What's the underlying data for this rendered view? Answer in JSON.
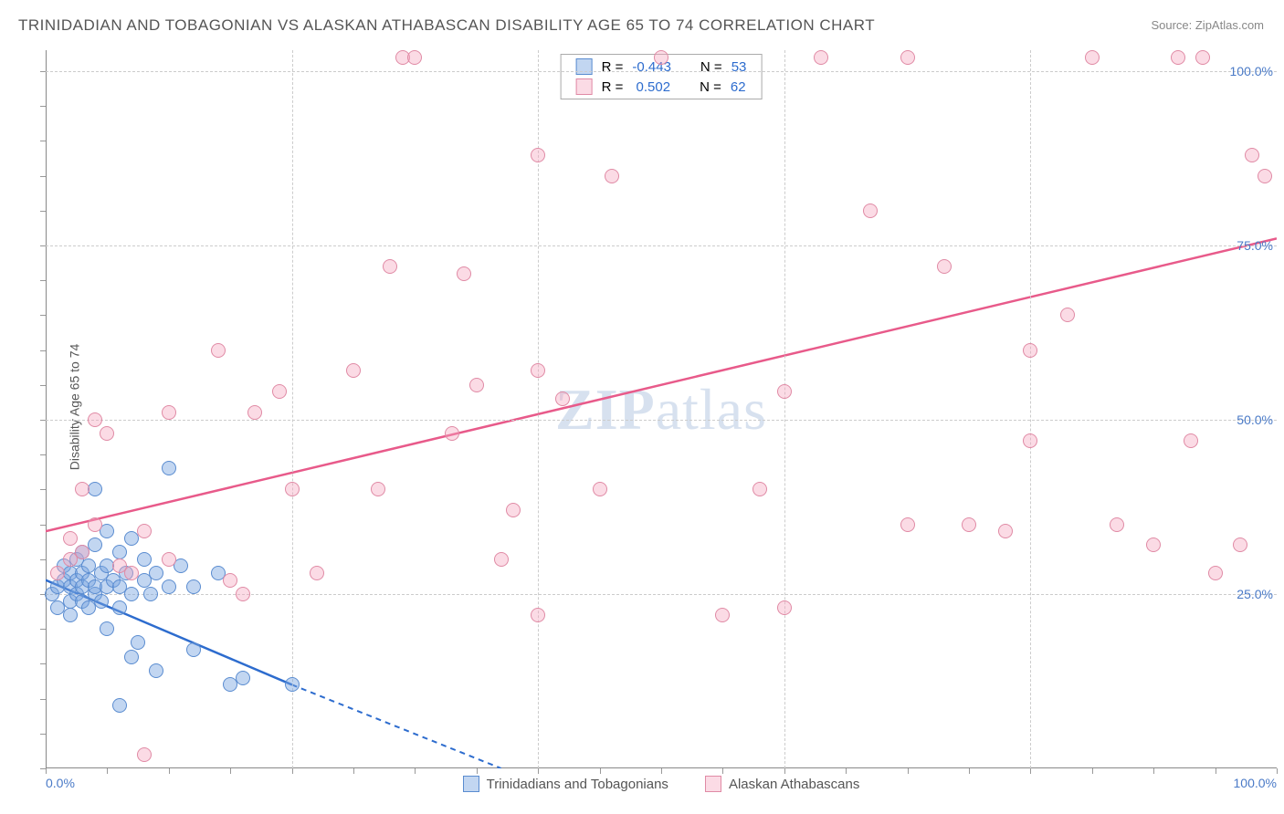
{
  "title": "TRINIDADIAN AND TOBAGONIAN VS ALASKAN ATHABASCAN DISABILITY AGE 65 TO 74 CORRELATION CHART",
  "source": "Source: ZipAtlas.com",
  "ylabel": "Disability Age 65 to 74",
  "watermark_a": "ZIP",
  "watermark_b": "atlas",
  "chart": {
    "type": "scatter",
    "xlim": [
      0,
      100
    ],
    "ylim": [
      0,
      103
    ],
    "xtick_labels": [
      "0.0%",
      "100.0%"
    ],
    "xtick_positions": [
      0,
      100
    ],
    "ytick_labels": [
      "25.0%",
      "50.0%",
      "75.0%",
      "100.0%"
    ],
    "ytick_positions": [
      25,
      50,
      75,
      100
    ],
    "x_gridlines": [
      20,
      40,
      60,
      80
    ],
    "y_gridlines": [
      25,
      50,
      75,
      100
    ],
    "tick_color": "#4a7ac7",
    "grid_color": "#d0d0d0",
    "background_color": "#ffffff",
    "marker_radius": 8,
    "marker_border_width": 1.5,
    "series": [
      {
        "name": "Trinidadians and Tobagonians",
        "fill_color": "rgba(120,165,225,0.45)",
        "stroke_color": "#5a8cd0",
        "R": "-0.443",
        "N": "53",
        "trend": {
          "x1": 0,
          "y1": 27,
          "x2": 20,
          "y2": 12,
          "solid_end_x": 20,
          "dash_end_x": 37,
          "dash_end_y": 0,
          "line_color": "#2d6cce",
          "line_width": 2.5
        },
        "points": [
          [
            0.5,
            25
          ],
          [
            1,
            23
          ],
          [
            1,
            26
          ],
          [
            1.5,
            27
          ],
          [
            1.5,
            29
          ],
          [
            2,
            24
          ],
          [
            2,
            26
          ],
          [
            2,
            22
          ],
          [
            2,
            28
          ],
          [
            2.5,
            25
          ],
          [
            2.5,
            27
          ],
          [
            2.5,
            30
          ],
          [
            3,
            24
          ],
          [
            3,
            26
          ],
          [
            3,
            28
          ],
          [
            3,
            31
          ],
          [
            3.5,
            23
          ],
          [
            3.5,
            27
          ],
          [
            3.5,
            29
          ],
          [
            4,
            25
          ],
          [
            4,
            26
          ],
          [
            4,
            32
          ],
          [
            4,
            40
          ],
          [
            4.5,
            24
          ],
          [
            4.5,
            28
          ],
          [
            5,
            20
          ],
          [
            5,
            26
          ],
          [
            5,
            29
          ],
          [
            5,
            34
          ],
          [
            5.5,
            27
          ],
          [
            6,
            23
          ],
          [
            6,
            26
          ],
          [
            6,
            31
          ],
          [
            6.5,
            28
          ],
          [
            7,
            16
          ],
          [
            7,
            25
          ],
          [
            7,
            33
          ],
          [
            7.5,
            18
          ],
          [
            8,
            27
          ],
          [
            8,
            30
          ],
          [
            8.5,
            25
          ],
          [
            9,
            28
          ],
          [
            9,
            14
          ],
          [
            10,
            43
          ],
          [
            10,
            26
          ],
          [
            11,
            29
          ],
          [
            12,
            26
          ],
          [
            12,
            17
          ],
          [
            14,
            28
          ],
          [
            15,
            12
          ],
          [
            16,
            13
          ],
          [
            20,
            12
          ],
          [
            6,
            9
          ]
        ]
      },
      {
        "name": "Alaskan Athabascans",
        "fill_color": "rgba(245,165,190,0.4)",
        "stroke_color": "#e08aa5",
        "R": "0.502",
        "N": "62",
        "trend": {
          "x1": 0,
          "y1": 34,
          "x2": 100,
          "y2": 76,
          "line_color": "#e85a8a",
          "line_width": 2.5
        },
        "points": [
          [
            1,
            28
          ],
          [
            2,
            30
          ],
          [
            2,
            33
          ],
          [
            3,
            31
          ],
          [
            3,
            40
          ],
          [
            4,
            35
          ],
          [
            4,
            50
          ],
          [
            5,
            48
          ],
          [
            6,
            29
          ],
          [
            7,
            28
          ],
          [
            8,
            34
          ],
          [
            8,
            2
          ],
          [
            10,
            30
          ],
          [
            10,
            51
          ],
          [
            14,
            60
          ],
          [
            15,
            27
          ],
          [
            16,
            25
          ],
          [
            17,
            51
          ],
          [
            19,
            54
          ],
          [
            20,
            40
          ],
          [
            22,
            28
          ],
          [
            25,
            57
          ],
          [
            27,
            40
          ],
          [
            28,
            72
          ],
          [
            29,
            102
          ],
          [
            30,
            102
          ],
          [
            33,
            48
          ],
          [
            34,
            71
          ],
          [
            35,
            55
          ],
          [
            37,
            30
          ],
          [
            38,
            37
          ],
          [
            40,
            88
          ],
          [
            40,
            57
          ],
          [
            42,
            53
          ],
          [
            45,
            40
          ],
          [
            46,
            85
          ],
          [
            50,
            102
          ],
          [
            55,
            22
          ],
          [
            58,
            40
          ],
          [
            60,
            23
          ],
          [
            60,
            54
          ],
          [
            63,
            102
          ],
          [
            67,
            80
          ],
          [
            70,
            35
          ],
          [
            70,
            102
          ],
          [
            73,
            72
          ],
          [
            75,
            35
          ],
          [
            78,
            34
          ],
          [
            80,
            60
          ],
          [
            80,
            47
          ],
          [
            83,
            65
          ],
          [
            85,
            102
          ],
          [
            87,
            35
          ],
          [
            90,
            32
          ],
          [
            92,
            102
          ],
          [
            93,
            47
          ],
          [
            94,
            102
          ],
          [
            95,
            28
          ],
          [
            97,
            32
          ],
          [
            98,
            88
          ],
          [
            99,
            85
          ],
          [
            40,
            22
          ]
        ]
      }
    ],
    "legend_top": {
      "label_R": "R =",
      "label_N": "N =",
      "value_color": "#2d6cce"
    },
    "legend_bottom_labels": [
      "Trinidadians and Tobagonians",
      "Alaskan Athabascans"
    ]
  }
}
